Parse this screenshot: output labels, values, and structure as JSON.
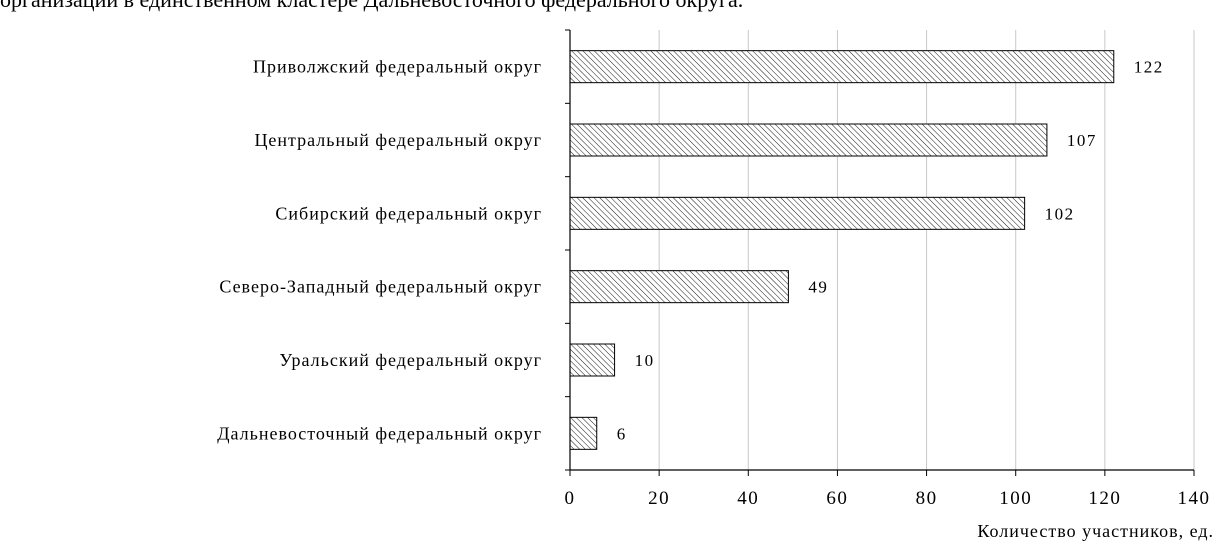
{
  "page": {
    "cropped_text": "организации в единственном кластере Дальневосточного федерального округа."
  },
  "chart_data": {
    "type": "bar",
    "orientation": "horizontal",
    "categories": [
      "Приволжский федеральный округ",
      "Центральный федеральный округ",
      "Сибирский федеральный округ",
      "Северо-Западный федеральный округ",
      "Уральский федеральный округ",
      "Дальневосточный федеральный округ"
    ],
    "values": [
      122,
      107,
      102,
      49,
      10,
      6
    ],
    "xlabel": "Количество участников, ед.",
    "ylabel": "",
    "xlim": [
      0,
      140
    ],
    "xticks": [
      0,
      20,
      40,
      60,
      80,
      100,
      120,
      140
    ],
    "grid": true,
    "legend": "none",
    "bar_fill": "hatched",
    "bar_stroke": "#000000",
    "grid_color": "#c8c8c8"
  }
}
